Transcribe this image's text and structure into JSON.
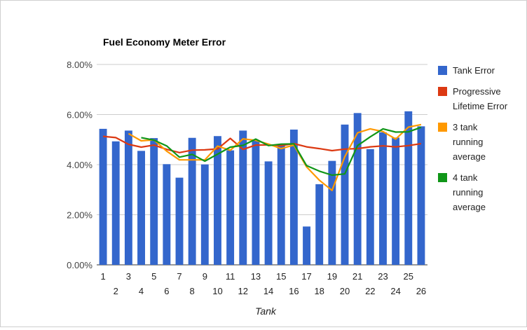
{
  "chart_data": {
    "type": "bar",
    "title": "Fuel Economy Meter Error",
    "xlabel": "Tank",
    "ylabel": "",
    "ylim": [
      0,
      0.08
    ],
    "yticks": [
      "0.00%",
      "2.00%",
      "4.00%",
      "6.00%",
      "8.00%"
    ],
    "yticks_values": [
      0,
      0.02,
      0.04,
      0.06,
      0.08
    ],
    "categories": [
      "1",
      "2",
      "3",
      "4",
      "5",
      "6",
      "7",
      "8",
      "9",
      "10",
      "11",
      "12",
      "13",
      "14",
      "15",
      "16",
      "17",
      "18",
      "19",
      "20",
      "21",
      "22",
      "23",
      "24",
      "25",
      "26"
    ],
    "legend_position": "right",
    "series": [
      {
        "name": "Tank Error",
        "kind": "bar",
        "color": "#3366cc",
        "values": [
          0.0543,
          0.0493,
          0.0536,
          0.0455,
          0.0506,
          0.0402,
          0.0348,
          0.0507,
          0.0401,
          0.0514,
          0.0457,
          0.0536,
          0.0498,
          0.0413,
          0.048,
          0.054,
          0.0153,
          0.0322,
          0.0415,
          0.056,
          0.0606,
          0.0462,
          0.0529,
          0.0508,
          0.0613,
          0.0553
        ]
      },
      {
        "name": "Progressive Lifetime Error",
        "kind": "line",
        "color": "#dc3912",
        "values": [
          0.0513,
          0.0508,
          0.0481,
          0.047,
          0.0478,
          0.0461,
          0.0448,
          0.0458,
          0.0459,
          0.0463,
          0.0505,
          0.0461,
          0.0478,
          0.0479,
          0.0476,
          0.0484,
          0.0471,
          0.0464,
          0.0456,
          0.0462,
          0.0464,
          0.0471,
          0.0475,
          0.0471,
          0.0476,
          0.0484
        ]
      },
      {
        "name": "3 tank running average",
        "kind": "line",
        "color": "#ff9900",
        "values": [
          null,
          null,
          0.0524,
          0.0495,
          0.0499,
          0.0454,
          0.0419,
          0.0419,
          0.0419,
          0.0474,
          0.0457,
          0.0503,
          0.0497,
          0.0482,
          0.0464,
          0.0478,
          0.0391,
          0.0338,
          0.0297,
          0.0432,
          0.0527,
          0.0543,
          0.0532,
          0.0502,
          0.055,
          0.056
        ]
      },
      {
        "name": "4 tank running average",
        "kind": "line",
        "color": "#109618",
        "values": [
          null,
          null,
          null,
          0.0508,
          0.0498,
          0.0475,
          0.043,
          0.0441,
          0.0414,
          0.0442,
          0.047,
          0.0477,
          0.0502,
          0.0476,
          0.0482,
          0.0483,
          0.0396,
          0.0374,
          0.0358,
          0.0363,
          0.0476,
          0.0511,
          0.0543,
          0.053,
          0.0531,
          0.0549
        ]
      }
    ]
  },
  "legend": [
    {
      "lines": [
        "Tank Error"
      ],
      "color": "#3366cc"
    },
    {
      "lines": [
        "Progressive",
        "Lifetime Error"
      ],
      "color": "#dc3912"
    },
    {
      "lines": [
        "3 tank",
        "running",
        "average"
      ],
      "color": "#ff9900"
    },
    {
      "lines": [
        "4 tank",
        "running",
        "average"
      ],
      "color": "#109618"
    }
  ]
}
